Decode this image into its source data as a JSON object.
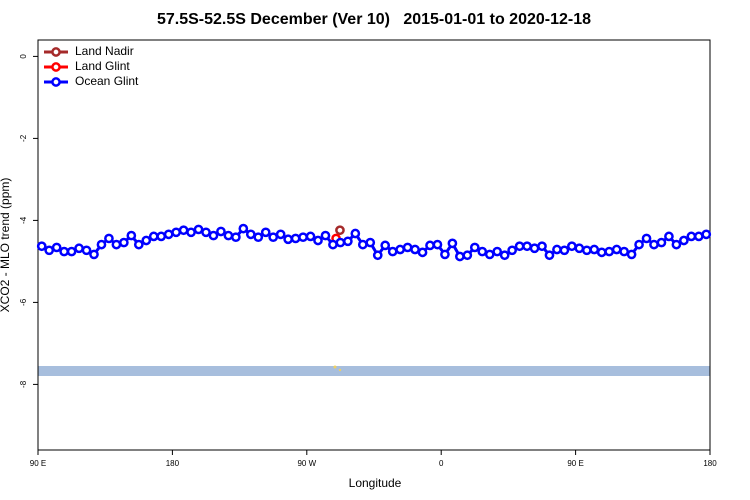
{
  "chart_data": {
    "type": "line",
    "title": "57.5S-52.5S December (Ver 10)   2015-01-01 to 2020-12-18",
    "x_label": "Longitude",
    "y_label": "XCO2 - MLO trend (ppm)",
    "xlim": [
      90,
      540
    ],
    "ylim": [
      -9.6,
      0.4
    ],
    "xticks": [
      {
        "value": 90,
        "label": "90 E"
      },
      {
        "value": 180,
        "label": "180"
      },
      {
        "value": 270,
        "label": "90 W"
      },
      {
        "value": 360,
        "label": "0"
      },
      {
        "value": 450,
        "label": "90 E"
      },
      {
        "value": 540,
        "label": "180"
      }
    ],
    "yticks": [
      0,
      -2,
      -4,
      -6,
      -8
    ],
    "legend": "top-left",
    "series": [
      {
        "name": "Land Nadir",
        "color": "#a52a2a",
        "x": [
          292.2
        ],
        "values": [
          -4.24
        ]
      },
      {
        "name": "Land Glint",
        "color": "#ff0000",
        "x": [
          289.6
        ],
        "values": [
          -4.44
        ]
      },
      {
        "name": "Ocean Glint",
        "color": "#0000ff",
        "x": [
          92.5,
          97.5,
          102.5,
          107.5,
          112.5,
          117.5,
          122.5,
          127.5,
          132.5,
          137.5,
          142.5,
          147.5,
          152.5,
          157.5,
          162.5,
          167.5,
          172.5,
          177.5,
          182.5,
          187.5,
          192.5,
          197.5,
          202.5,
          207.5,
          212.5,
          217.5,
          222.5,
          227.5,
          232.5,
          237.5,
          242.5,
          247.5,
          252.5,
          257.5,
          262.5,
          267.5,
          272.5,
          277.5,
          282.5,
          287.5,
          292.5,
          297.5,
          302.5,
          307.5,
          312.5,
          317.5,
          322.5,
          327.5,
          332.5,
          337.5,
          342.5,
          347.5,
          352.5,
          357.5,
          362.5,
          367.5,
          372.5,
          377.5,
          382.5,
          387.5,
          392.5,
          397.5,
          402.5,
          407.5,
          412.5,
          417.5,
          422.5,
          427.5,
          432.5,
          437.5,
          442.5,
          447.5,
          452.5,
          457.5,
          462.5,
          467.5,
          472.5,
          477.5,
          482.5,
          487.5,
          492.5,
          497.5,
          502.5,
          507.5,
          512.5,
          517.5,
          522.5,
          527.5,
          532.5,
          537.5
        ],
        "values": [
          -4.63,
          -4.73,
          -4.66,
          -4.76,
          -4.76,
          -4.68,
          -4.73,
          -4.83,
          -4.59,
          -4.44,
          -4.59,
          -4.54,
          -4.37,
          -4.59,
          -4.49,
          -4.39,
          -4.39,
          -4.34,
          -4.29,
          -4.24,
          -4.29,
          -4.22,
          -4.29,
          -4.37,
          -4.27,
          -4.37,
          -4.41,
          -4.2,
          -4.34,
          -4.41,
          -4.29,
          -4.41,
          -4.34,
          -4.46,
          -4.44,
          -4.41,
          -4.39,
          -4.49,
          -4.37,
          -4.59,
          -4.54,
          -4.51,
          -4.32,
          -4.59,
          -4.54,
          -4.85,
          -4.61,
          -4.76,
          -4.71,
          -4.66,
          -4.71,
          -4.78,
          -4.61,
          -4.59,
          -4.83,
          -4.56,
          -4.88,
          -4.85,
          -4.66,
          -4.76,
          -4.83,
          -4.76,
          -4.85,
          -4.73,
          -4.63,
          -4.63,
          -4.68,
          -4.63,
          -4.85,
          -4.71,
          -4.73,
          -4.63,
          -4.68,
          -4.73,
          -4.71,
          -4.78,
          -4.76,
          -4.71,
          -4.76,
          -4.83,
          -4.59,
          -4.44,
          -4.59,
          -4.54,
          -4.39,
          -4.59,
          -4.49,
          -4.39,
          -4.39,
          -4.34
        ]
      }
    ]
  }
}
